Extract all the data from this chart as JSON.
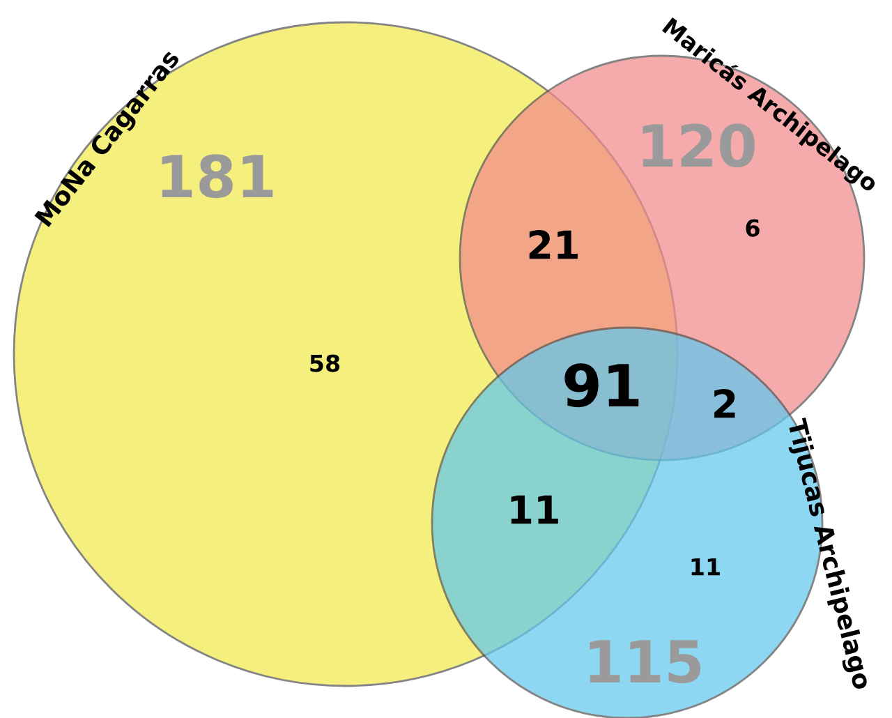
{
  "chart_data": {
    "type": "other",
    "categories": [
      "MoNa Cagarras",
      "Maricás Archipelago",
      "Tijucas Archipelago"
    ],
    "values": [
      181,
      120,
      115
    ],
    "data_labels": true,
    "colors": [
      "#f2ea4c",
      "#f28a8c",
      "#62c8ee"
    ],
    "annotations": [
      "58",
      "6",
      "11",
      "21",
      "11",
      "2",
      "91"
    ]
  }
}
